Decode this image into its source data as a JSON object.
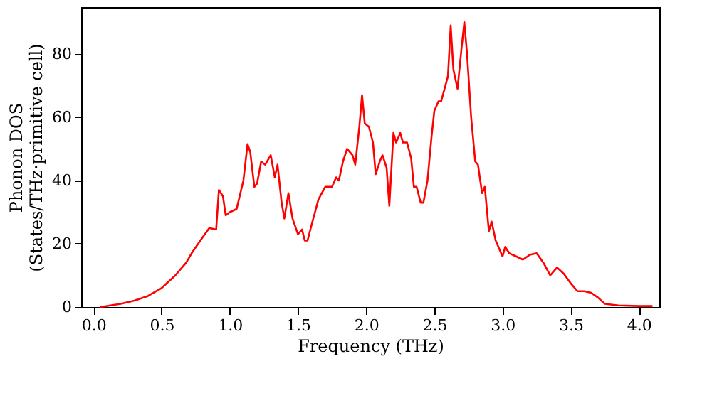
{
  "chart_data": {
    "type": "line",
    "xlabel": "Frequency (THz)",
    "ylabel": "Phonon DOS\n(States/THz·primitive cell)",
    "xlim": [
      -0.09,
      4.15
    ],
    "ylim": [
      0,
      94.8
    ],
    "xticks": [
      {
        "value": 0,
        "label": "0.0"
      },
      {
        "value": 0.5,
        "label": "0.5"
      },
      {
        "value": 1,
        "label": "1.0"
      },
      {
        "value": 1.5,
        "label": "1.5"
      },
      {
        "value": 2,
        "label": "2.0"
      },
      {
        "value": 2.5,
        "label": "2.5"
      },
      {
        "value": 3,
        "label": "3.0"
      },
      {
        "value": 3.5,
        "label": "3.5"
      },
      {
        "value": 4,
        "label": "4.0"
      }
    ],
    "yticks": [
      0,
      20,
      40,
      60,
      80
    ],
    "grid": false,
    "series": [
      {
        "color": "#ff0000",
        "x": [
          0.05,
          0.2,
          0.3,
          0.4,
          0.5,
          0.6,
          0.68,
          0.72,
          0.8,
          0.85,
          0.9,
          0.92,
          0.95,
          0.97,
          1.0,
          1.05,
          1.1,
          1.13,
          1.15,
          1.18,
          1.2,
          1.23,
          1.26,
          1.3,
          1.33,
          1.35,
          1.38,
          1.4,
          1.43,
          1.46,
          1.5,
          1.53,
          1.55,
          1.57,
          1.6,
          1.65,
          1.7,
          1.75,
          1.78,
          1.8,
          1.83,
          1.86,
          1.9,
          1.92,
          1.95,
          1.97,
          1.99,
          2.02,
          2.05,
          2.07,
          2.1,
          2.12,
          2.15,
          2.17,
          2.2,
          2.22,
          2.25,
          2.27,
          2.3,
          2.33,
          2.35,
          2.37,
          2.4,
          2.42,
          2.45,
          2.48,
          2.5,
          2.53,
          2.55,
          2.6,
          2.62,
          2.64,
          2.67,
          2.7,
          2.72,
          2.74,
          2.77,
          2.8,
          2.82,
          2.85,
          2.87,
          2.9,
          2.92,
          2.95,
          3.0,
          3.02,
          3.05,
          3.1,
          3.15,
          3.2,
          3.25,
          3.3,
          3.35,
          3.4,
          3.45,
          3.5,
          3.55,
          3.6,
          3.65,
          3.7,
          3.75,
          3.85,
          4.0,
          4.1
        ],
        "values": [
          0,
          1,
          2,
          3.5,
          6,
          10,
          14,
          17,
          22,
          25,
          24.5,
          37,
          35,
          29,
          30,
          31,
          40,
          51.5,
          49,
          38,
          39,
          46,
          45,
          48,
          41,
          45,
          33,
          28,
          36,
          28,
          23,
          24.5,
          21,
          21,
          26,
          34,
          38,
          38,
          41,
          40,
          46,
          50,
          48,
          45,
          57,
          67,
          58,
          57,
          52,
          42,
          46,
          48,
          44,
          32,
          55,
          52,
          55,
          52,
          52,
          47,
          38,
          38,
          33,
          33,
          40,
          54,
          62,
          65,
          65,
          73,
          89,
          75,
          69,
          82,
          90,
          80,
          60,
          46,
          45,
          36,
          38,
          24,
          27,
          21,
          16,
          19,
          17,
          16,
          15,
          16.5,
          17,
          14,
          10,
          12.5,
          10.5,
          7.5,
          5,
          5,
          4.5,
          3,
          1,
          0.5,
          0.3,
          0.3
        ]
      }
    ]
  }
}
